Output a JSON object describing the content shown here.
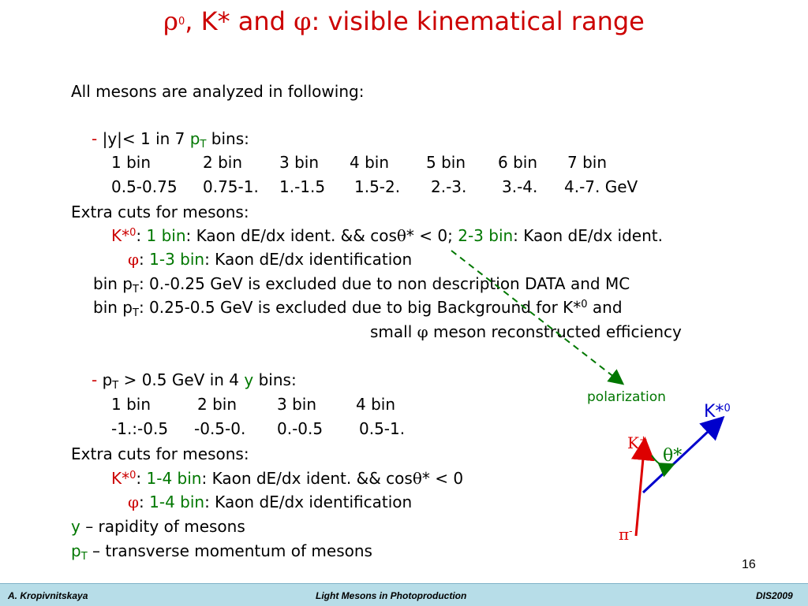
{
  "title": {
    "rho": "ρ",
    "rho_sup": "0",
    "k_part": ", K* and ",
    "phi": "φ",
    "rest": ": visible kinematical range"
  },
  "intro": "All mesons are analyzed  in following:",
  "sec1": {
    "dash": "- ",
    "cond": "|y|< 1 in 7 ",
    "pt_p": "p",
    "pt_sub": "T",
    "bins_word": " bins:",
    "bin_labels": [
      "1 bin",
      "2 bin",
      "3 bin",
      "4 bin",
      "5 bin",
      "6 bin",
      "7 bin"
    ],
    "bin_ranges": [
      "0.5-0.75",
      "0.75-1.",
      "1.-1.5",
      "1.5-2.",
      "2.-3.",
      "3.-4.",
      "4.-7. GeV"
    ]
  },
  "extra1": {
    "heading": "Extra cuts for mesons:",
    "k_label": "K*",
    "k_sup": "0",
    "colon1": ": ",
    "k_bin1": "1 bin",
    "k_cut1": ": Kaon dE/dx ident. && cos",
    "theta": "θ",
    "k_cut1b": "* < 0; ",
    "k_bin2": "2-3 bin",
    "k_cut2": ": Kaon dE/dx ident.",
    "phi": "φ",
    "phi_colon": ": ",
    "phi_bin": "1-3 bin",
    "phi_cut": ": Kaon dE/dx identification",
    "excl1_a": "bin p",
    "excl1_sub": "T",
    "excl1_b": ": 0.-0.25 GeV is excluded due to non description DATA and MC",
    "excl2_a": "bin p",
    "excl2_sub": "T",
    "excl2_b": ": 0.25-0.5 GeV is excluded due to big Background for K*",
    "excl2_sup": "0",
    "excl2_c": " and",
    "small_a": "small ",
    "small_phi": "φ",
    "small_b": " meson reconstructed efficiency"
  },
  "sec2": {
    "dash": "- ",
    "pt_p": "p",
    "pt_sub": "T",
    "cond": " > 0.5 GeV in 4 ",
    "y": "y",
    "bins_word": " bins:",
    "bin_labels": [
      "1 bin",
      "2 bin",
      "3 bin",
      "4 bin"
    ],
    "bin_ranges": [
      "-1.:-0.5",
      "-0.5-0.",
      "0.-0.5",
      "0.5-1."
    ]
  },
  "extra2": {
    "heading": "Extra cuts for mesons:",
    "k_label": "K*",
    "k_sup": "0",
    "colon": ": ",
    "k_bin": "1-4 bin",
    "k_cut": ": Kaon dE/dx ident. && cos",
    "theta": "θ",
    "k_cut_b": "* < 0",
    "phi": "φ",
    "phi_colon": ": ",
    "phi_bin": "1-4 bin",
    "phi_cut": ": Kaon dE/dx identification"
  },
  "defs": {
    "y": "y",
    "y_def": " – rapidity of mesons",
    "pt_p": "p",
    "pt_sub": "T",
    "pt_def": " – transverse momentum of mesons"
  },
  "diagram": {
    "polarization": "polarization",
    "kstar": "K*",
    "kstar_sup": "0",
    "kplus": "K",
    "kplus_sup": "+",
    "theta": "θ*",
    "piminus": "π",
    "piminus_sup": "-"
  },
  "page_number": "16",
  "footer": {
    "author": "A. Kropivnitskaya",
    "talk": "Light Mesons in Photoproduction",
    "conf": "DIS2009"
  },
  "colors": {
    "title": "#cc0000",
    "accent_red": "#cc0000",
    "accent_green": "#007700",
    "vector_blue": "#0000cc",
    "footer_bg": "#b7dde8"
  }
}
